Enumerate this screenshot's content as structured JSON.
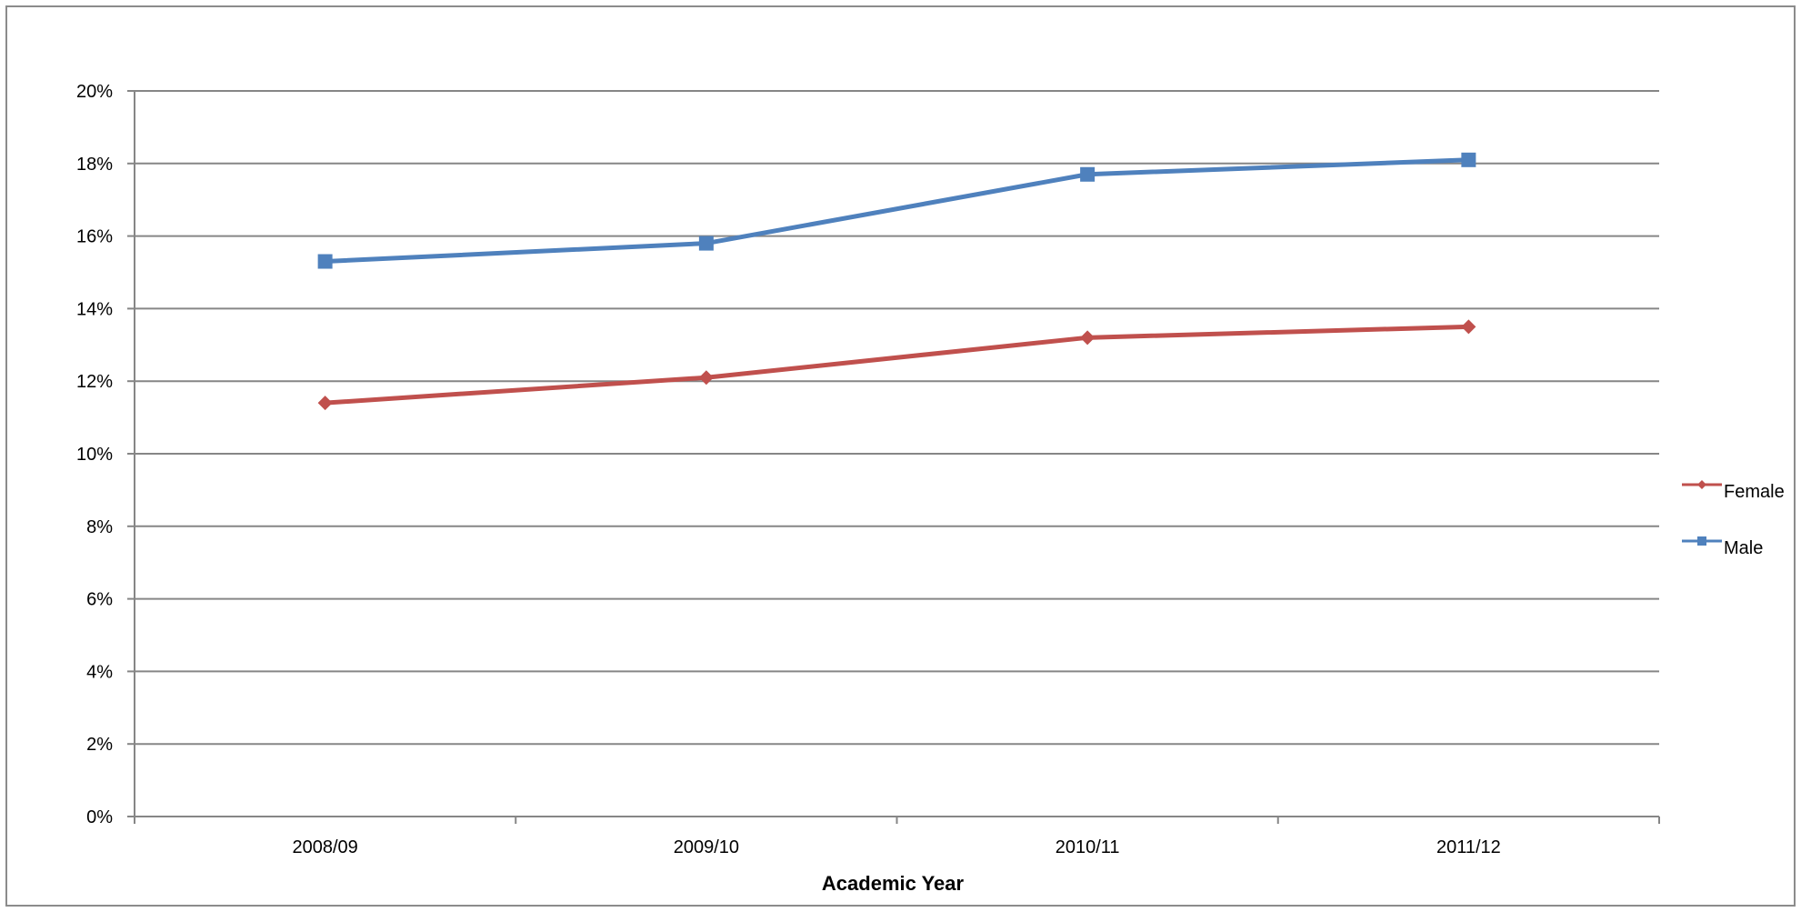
{
  "chart_data": {
    "type": "line",
    "title": "",
    "xlabel": "Academic Year",
    "ylabel": "",
    "categories": [
      "2008/09",
      "2009/10",
      "2010/11",
      "2011/12"
    ],
    "series": [
      {
        "name": "Female",
        "values": [
          11.4,
          12.1,
          13.2,
          13.5
        ],
        "color": "#c0504d",
        "marker": "diamond"
      },
      {
        "name": "Male",
        "values": [
          15.3,
          15.8,
          17.7,
          18.1
        ],
        "color": "#4f81bd",
        "marker": "square"
      }
    ],
    "ylim": [
      0,
      20
    ],
    "y_tick_step": 2,
    "y_tick_suffix": "%",
    "grid": true,
    "legend_position": "right",
    "gridline_color": "#868686"
  }
}
